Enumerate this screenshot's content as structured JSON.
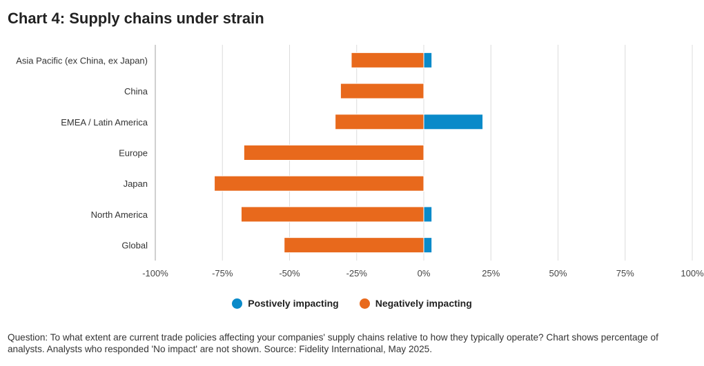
{
  "title": "Chart 4: Supply chains under strain",
  "chart_data": {
    "type": "bar",
    "orientation": "horizontal",
    "stacked": true,
    "categories": [
      "Asia Pacific (ex China, ex Japan)",
      "China",
      "EMEA / Latin America",
      "Europe",
      "Japan",
      "North America",
      "Global"
    ],
    "series": [
      {
        "name": "Postively impacting",
        "color": "#0a8ac9",
        "values": [
          3,
          0,
          22,
          0,
          0,
          3,
          3
        ]
      },
      {
        "name": "Negatively impacting",
        "color": "#e8691c",
        "values": [
          -27,
          -31,
          -33,
          -67,
          -78,
          -68,
          -52
        ]
      }
    ],
    "xlim": [
      -100,
      100
    ],
    "x_ticks": [
      -100,
      -75,
      -50,
      -25,
      0,
      25,
      50,
      75,
      100
    ],
    "tick_format": "{v}%",
    "grid": "vertical",
    "legend": "bottom-center"
  },
  "footnote": "Question: To what extent are current trade policies affecting your companies' supply chains relative to how they typically operate? Chart shows percentage of analysts. Analysts who responded 'No impact' are not shown. Source: Fidelity International, May 2025."
}
